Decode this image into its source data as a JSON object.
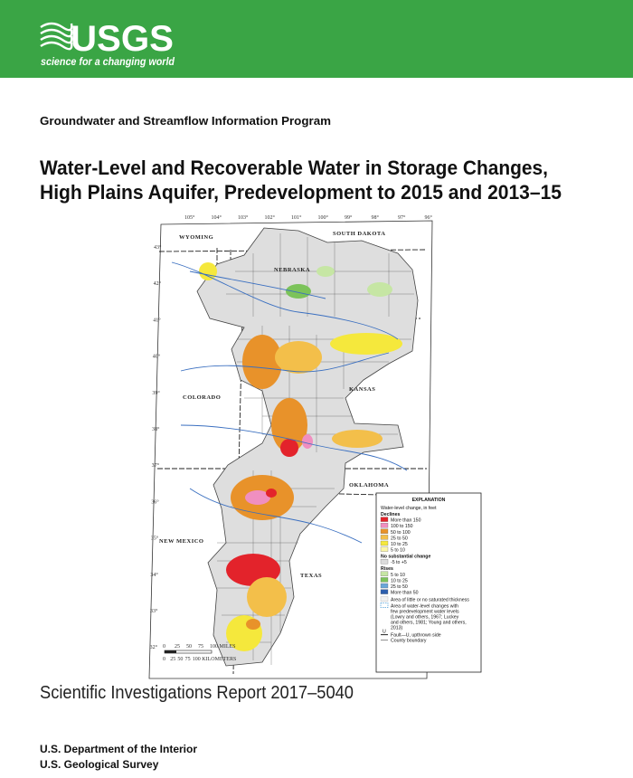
{
  "header": {
    "logo": "USGS",
    "tagline": "science for a changing world"
  },
  "program": "Groundwater and Streamflow Information Program",
  "title": [
    "Water-Level and Recoverable Water in Storage Changes,",
    "High Plains Aquifer, Predevelopment to 2015 and 2013–15"
  ],
  "map": {
    "longitudes": [
      "105°",
      "104°",
      "103°",
      "102°",
      "101°",
      "100°",
      "99°",
      "98°",
      "97°",
      "96°"
    ],
    "latitudes": [
      "43°",
      "42°",
      "41°",
      "40°",
      "39°",
      "38°",
      "37°",
      "36°",
      "35°",
      "34°",
      "33°",
      "32°"
    ],
    "states": [
      "WYOMING",
      "SOUTH DAKOTA",
      "NEBRASKA",
      "COLORADO",
      "KANSAS",
      "OKLAHOMA",
      "NEW MEXICO",
      "TEXAS"
    ],
    "legend": {
      "title": "EXPLANATION",
      "heading": "Water-level change, in feet",
      "groups": [
        {
          "name": "Declines",
          "items": [
            {
              "label": "More than 150",
              "color": "#e3232b"
            },
            {
              "label": "100 to 150",
              "color": "#f08fc0"
            },
            {
              "label": "50 to 100",
              "color": "#e8922a"
            },
            {
              "label": "25 to 50",
              "color": "#f3bf4a"
            },
            {
              "label": "10 to 25",
              "color": "#f5e83c"
            },
            {
              "label": "5 to 10",
              "color": "#fbf6a8"
            }
          ]
        },
        {
          "name": "No substantial change",
          "items": [
            {
              "label": "-5 to +5",
              "color": "#dcdcdc"
            }
          ]
        },
        {
          "name": "Rises",
          "items": [
            {
              "label": "5 to 10",
              "color": "#c6e6a4"
            },
            {
              "label": "10 to 25",
              "color": "#7cc35a"
            },
            {
              "label": "25 to 50",
              "color": "#6aa6d8"
            },
            {
              "label": "More than 50",
              "color": "#2e5fae"
            }
          ]
        }
      ],
      "notes": [
        "Area of little or no saturated thickness",
        "Area of water-level changes with",
        "few predevelopment water levels",
        "(Lowry and others, 1967; Luckey",
        "and others, 1981; Young and others,",
        "2013)",
        "Fault—U, upthrown side",
        "County boundary"
      ],
      "fault_mark": "U"
    },
    "scale": {
      "miles": [
        "0",
        "25",
        "50",
        "75",
        "100 MILES"
      ],
      "km": [
        "0",
        "25",
        "50",
        "75",
        "100 KILOMETERS"
      ]
    }
  },
  "report": "Scientific Investigations Report 2017–5040",
  "footer": [
    "U.S. Department of the Interior",
    "U.S. Geological Survey"
  ]
}
